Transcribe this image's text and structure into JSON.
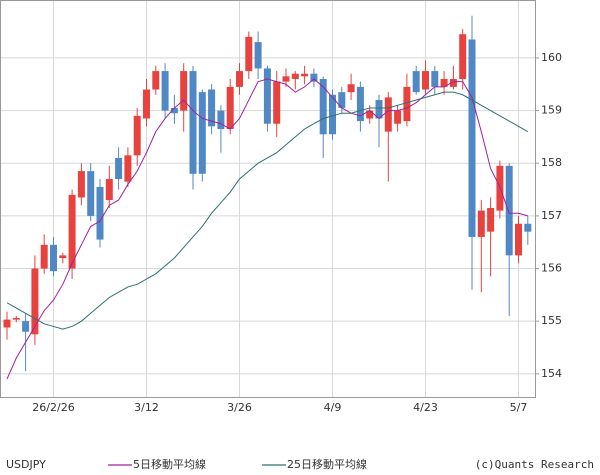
{
  "chart_data": {
    "type": "candlestick",
    "categories": [
      null,
      null,
      null,
      null,
      null,
      "26/2/26",
      null,
      null,
      null,
      null,
      null,
      null,
      null,
      null,
      null,
      "3/12",
      null,
      null,
      null,
      null,
      null,
      null,
      null,
      null,
      null,
      "3/26",
      null,
      null,
      null,
      null,
      null,
      null,
      null,
      null,
      null,
      "4/9",
      null,
      null,
      null,
      null,
      null,
      null,
      null,
      null,
      null,
      "4/23",
      null,
      null,
      null,
      null,
      null,
      null,
      null,
      null,
      null,
      "5/7",
      null
    ],
    "candles": {
      "name": "USDJPY",
      "up_color": "#e8423f",
      "down_color": "#4f88c4",
      "open": [
        154.88,
        155.03,
        155.0,
        154.75,
        156.0,
        156.45,
        156.2,
        156.0,
        157.35,
        157.85,
        157.55,
        157.3,
        158.1,
        157.65,
        158.15,
        158.85,
        159.4,
        159.75,
        159.05,
        159.0,
        159.75,
        159.35,
        159.4,
        159.0,
        158.65,
        159.45,
        159.75,
        160.3,
        159.8,
        158.75,
        159.55,
        159.6,
        159.65,
        159.7,
        159.6,
        159.3,
        159.35,
        159.35,
        159.45,
        158.85,
        159.2,
        158.6,
        158.75,
        158.8,
        159.75,
        159.4,
        159.75,
        159.45,
        159.45,
        159.6,
        160.35,
        156.6,
        156.7,
        157.1,
        157.95,
        156.25,
        156.85
      ],
      "high": [
        155.18,
        155.1,
        155.15,
        156.25,
        156.65,
        156.6,
        156.3,
        157.5,
        158.0,
        158.0,
        157.7,
        157.95,
        158.3,
        158.3,
        159.05,
        159.6,
        159.85,
        159.9,
        159.3,
        159.9,
        159.85,
        159.4,
        159.5,
        159.1,
        159.6,
        159.9,
        160.5,
        160.5,
        159.85,
        159.75,
        159.8,
        159.75,
        159.85,
        159.8,
        159.65,
        159.4,
        159.45,
        159.7,
        159.55,
        159.1,
        159.3,
        159.35,
        159.1,
        159.7,
        159.85,
        159.95,
        159.85,
        159.75,
        159.85,
        160.55,
        160.8,
        157.3,
        157.35,
        158.05,
        158.0,
        157.0,
        157.0
      ],
      "low": [
        154.65,
        154.98,
        154.05,
        154.55,
        155.9,
        155.85,
        156.1,
        155.8,
        157.2,
        156.9,
        156.4,
        157.15,
        157.5,
        157.55,
        157.95,
        158.7,
        159.3,
        158.85,
        158.75,
        158.6,
        157.5,
        157.65,
        158.55,
        158.2,
        158.55,
        159.3,
        159.6,
        159.6,
        158.6,
        158.5,
        159.45,
        159.4,
        159.5,
        159.45,
        158.1,
        158.45,
        158.95,
        159.2,
        158.6,
        158.75,
        158.3,
        157.65,
        158.6,
        158.7,
        159.3,
        159.3,
        159.3,
        159.3,
        159.4,
        159.4,
        155.6,
        155.55,
        155.85,
        156.95,
        155.1,
        156.1,
        156.45
      ],
      "close": [
        155.03,
        155.06,
        154.8,
        156.0,
        156.45,
        155.95,
        156.25,
        157.4,
        157.85,
        157.0,
        156.55,
        157.7,
        157.7,
        158.15,
        158.9,
        159.4,
        159.75,
        159.0,
        158.95,
        159.75,
        157.8,
        157.8,
        158.7,
        158.65,
        159.45,
        159.75,
        160.4,
        159.8,
        158.75,
        159.55,
        159.65,
        159.7,
        159.7,
        159.55,
        158.55,
        158.55,
        159.05,
        159.5,
        158.8,
        159.0,
        158.85,
        159.25,
        159.0,
        159.45,
        159.35,
        159.75,
        159.45,
        159.6,
        159.6,
        160.45,
        156.6,
        157.1,
        157.15,
        157.95,
        156.25,
        156.85,
        156.7
      ]
    },
    "series": [
      {
        "name": "5日移動平均線",
        "color": "#a020a0",
        "values": [
          153.9,
          154.3,
          154.6,
          154.9,
          155.2,
          155.4,
          155.7,
          156.1,
          156.45,
          156.8,
          156.9,
          157.2,
          157.3,
          157.6,
          157.85,
          158.2,
          158.6,
          158.85,
          159.05,
          159.2,
          159.0,
          158.85,
          158.8,
          158.75,
          158.65,
          158.85,
          159.2,
          159.55,
          159.6,
          159.55,
          159.5,
          159.35,
          159.45,
          159.6,
          159.45,
          159.25,
          159.05,
          158.95,
          158.9,
          159.0,
          158.85,
          159.0,
          159.0,
          159.05,
          159.15,
          159.3,
          159.45,
          159.45,
          159.55,
          159.55,
          159.25,
          158.6,
          157.9,
          157.55,
          157.05,
          157.05,
          157.0
        ]
      },
      {
        "name": "25日移動平均線",
        "color": "#2f7070",
        "values": [
          155.35,
          155.25,
          155.15,
          155.05,
          154.95,
          154.9,
          154.85,
          154.9,
          155.0,
          155.15,
          155.3,
          155.45,
          155.55,
          155.65,
          155.7,
          155.8,
          155.9,
          156.05,
          156.2,
          156.4,
          156.6,
          156.8,
          157.05,
          157.25,
          157.45,
          157.7,
          157.85,
          158.0,
          158.1,
          158.2,
          158.35,
          158.5,
          158.65,
          158.75,
          158.85,
          158.9,
          158.95,
          158.95,
          159.0,
          159.05,
          159.05,
          159.05,
          159.1,
          159.15,
          159.2,
          159.25,
          159.3,
          159.35,
          159.35,
          159.3,
          159.2,
          159.1,
          159.0,
          158.9,
          158.8,
          158.7,
          158.6
        ]
      }
    ],
    "ylim": [
      153.56,
      161.1
    ],
    "yticks": [
      154,
      155,
      156,
      157,
      158,
      159,
      160
    ],
    "grid": true,
    "credit": "(c)Quants Research"
  }
}
